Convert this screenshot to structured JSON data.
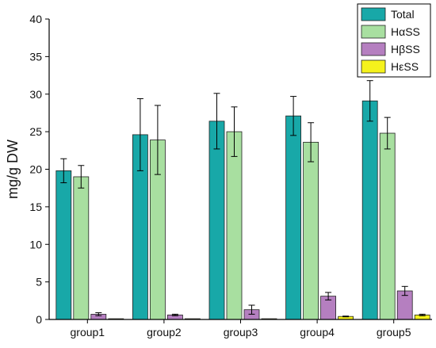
{
  "chart_data": {
    "type": "bar",
    "title": "",
    "xlabel": "",
    "ylabel": "mg/g DW",
    "ylim": [
      0,
      40
    ],
    "yticks": [
      0,
      5,
      10,
      15,
      20,
      25,
      30,
      35,
      40
    ],
    "grid": false,
    "legend_position": "top-right",
    "categories": [
      "group1",
      "group2",
      "group3",
      "group4",
      "group5"
    ],
    "series": [
      {
        "name": "Total",
        "color": "#18A8A8",
        "values": [
          19.8,
          24.6,
          26.4,
          27.1,
          29.1
        ],
        "errors": [
          1.6,
          4.8,
          3.7,
          2.6,
          2.7
        ]
      },
      {
        "name": "HαSS",
        "color": "#A8DFA0",
        "values": [
          19.0,
          23.9,
          25.0,
          23.6,
          24.8
        ],
        "errors": [
          1.5,
          4.6,
          3.3,
          2.6,
          2.1
        ]
      },
      {
        "name": "HβSS",
        "color": "#B57FC0",
        "values": [
          0.7,
          0.6,
          1.3,
          3.1,
          3.8
        ],
        "errors": [
          0.2,
          0.1,
          0.6,
          0.5,
          0.6
        ]
      },
      {
        "name": "HεSS",
        "color": "#F5F21C",
        "values": [
          0.1,
          0.1,
          0.1,
          0.4,
          0.6
        ],
        "errors": [
          0.0,
          0.0,
          0.0,
          0.05,
          0.1
        ]
      }
    ]
  }
}
